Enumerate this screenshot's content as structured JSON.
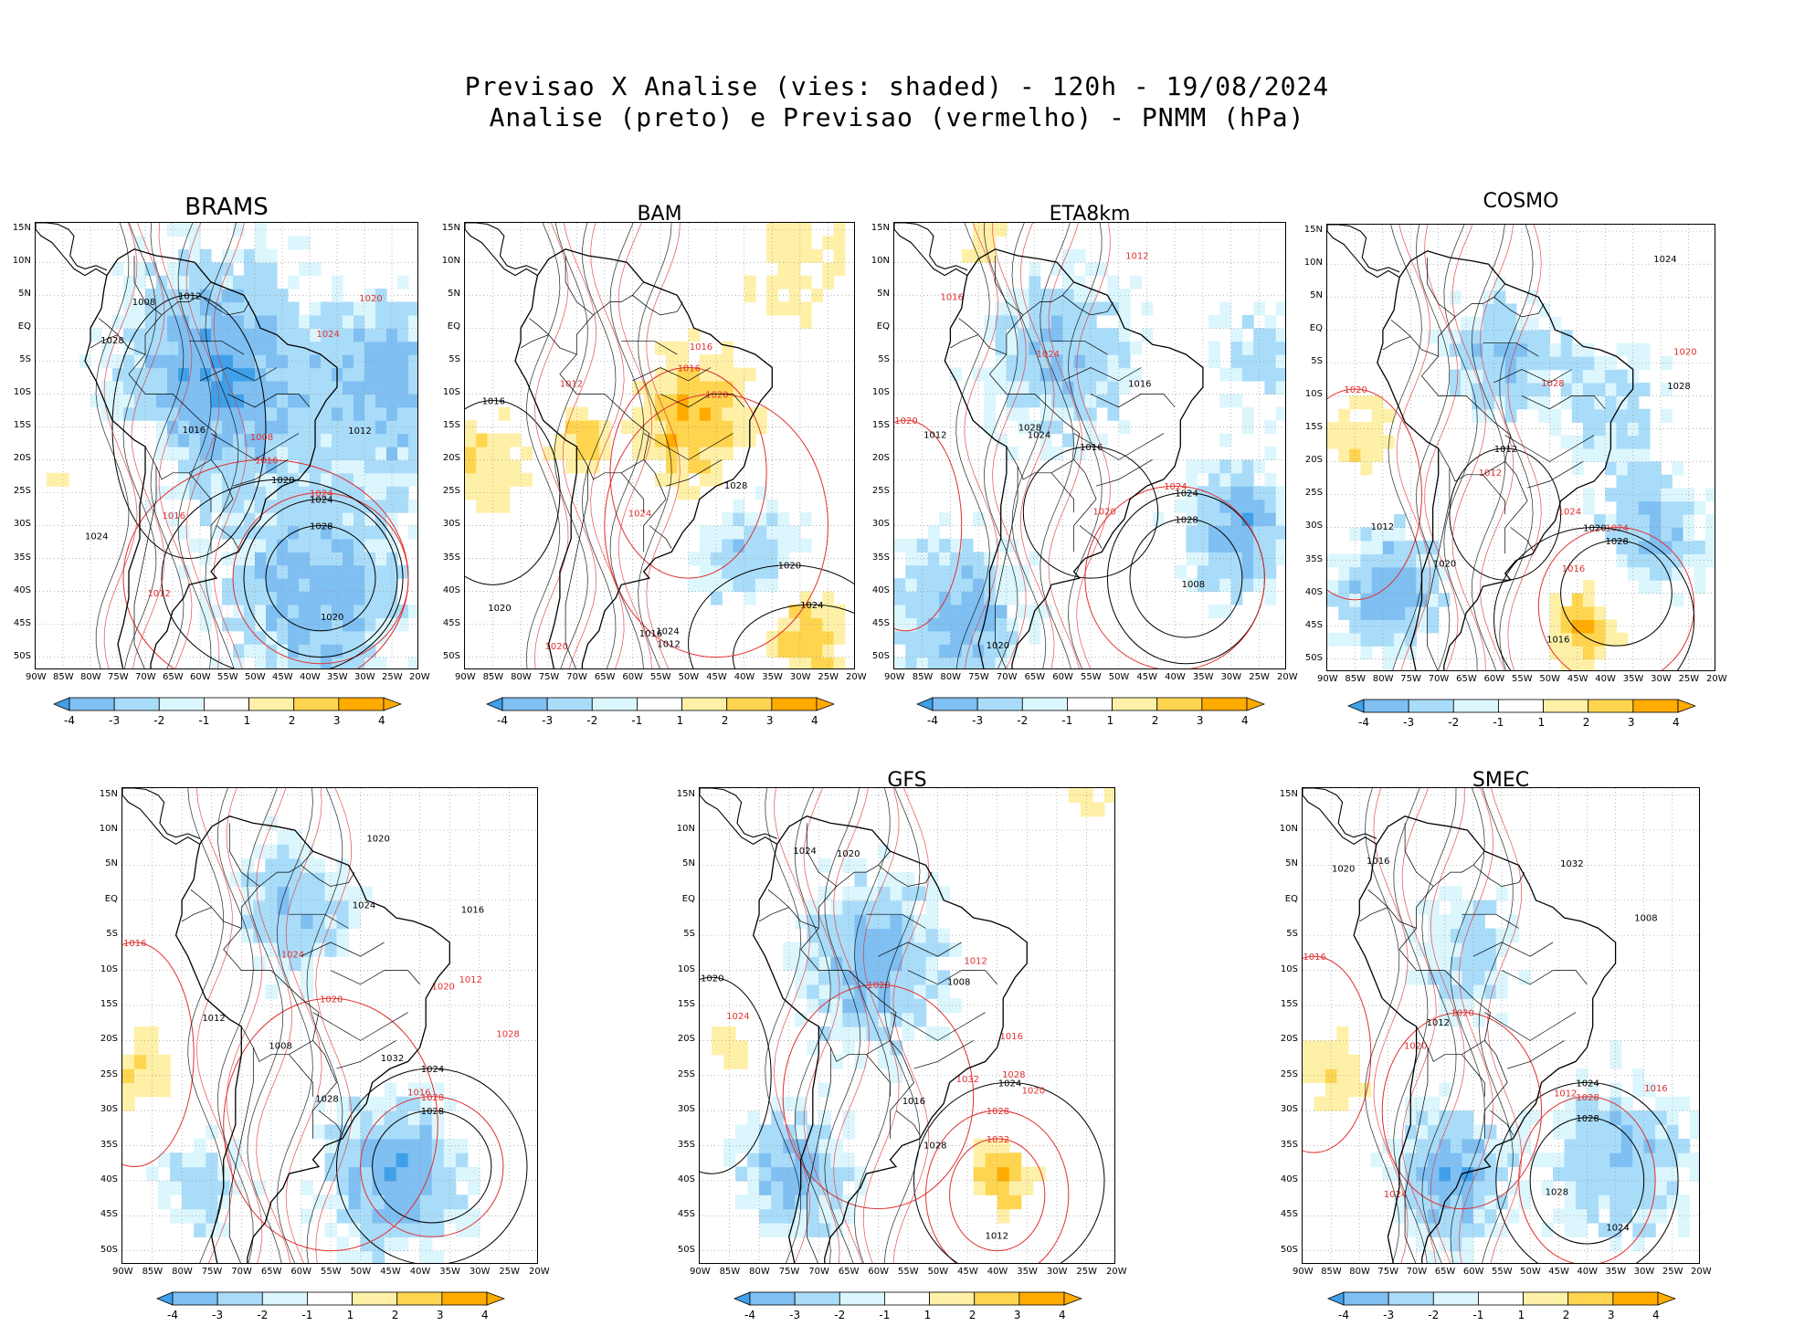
{
  "title_line1": "Previsao X Analise (vies: shaded) - 120h - 19/08/2024",
  "title_line2": "Analise (preto) e Previsao (vermelho) - PNMM (hPa)",
  "colors": {
    "neg4": "#3fa0ea",
    "neg3": "#7fbff2",
    "neg2": "#a9dcf9",
    "neg1": "#dcf6fd",
    "pos1": "#ffffff",
    "pos2": "#fff0a8",
    "pos3": "#ffd54f",
    "pos4": "#ffab00",
    "analysis": "#000000",
    "forecast": "#e03030",
    "grid": "#999999"
  },
  "lat_ticks": [
    "15N",
    "10N",
    "5N",
    "EQ",
    "5S",
    "10S",
    "15S",
    "20S",
    "25S",
    "30S",
    "35S",
    "40S",
    "45S",
    "50S"
  ],
  "lon_ticks": [
    "90W",
    "85W",
    "80W",
    "75W",
    "70W",
    "65W",
    "60W",
    "55W",
    "50W",
    "45W",
    "40W",
    "35W",
    "30W",
    "25W",
    "20W"
  ],
  "colorbar_labels": [
    "-4",
    "-3",
    "-2",
    "-1",
    "1",
    "2",
    "3",
    "4"
  ],
  "panels": [
    {
      "id": "brams",
      "title": "BRAMS",
      "labels_black": [
        "1008",
        "1012",
        "1016",
        "1020",
        "1024",
        "1028"
      ],
      "labels_red": [
        "1008",
        "1012",
        "1016",
        "1020",
        "1024"
      ]
    },
    {
      "id": "bam",
      "title": "BAM",
      "labels_black": [
        "1012",
        "1016",
        "1020",
        "1024",
        "1028"
      ],
      "labels_red": [
        "1012",
        "1016",
        "1020",
        "1024"
      ]
    },
    {
      "id": "eta8km",
      "title": "ETA8km",
      "labels_black": [
        "1008",
        "1012",
        "1016",
        "1020",
        "1024",
        "1028"
      ],
      "labels_red": [
        "1012",
        "1016",
        "1020",
        "1024"
      ]
    },
    {
      "id": "cosmo",
      "title": "COSMO",
      "labels_black": [
        "1012",
        "1016",
        "1020",
        "1024",
        "1028"
      ],
      "labels_red": [
        "1012",
        "1016",
        "1020",
        "1024",
        "1028"
      ]
    },
    {
      "id": "unnamed",
      "title": "",
      "labels_black": [
        "1008",
        "1012",
        "1016",
        "1020",
        "1024",
        "1028",
        "1032"
      ],
      "labels_red": [
        "1012",
        "1016",
        "1020",
        "1024",
        "1028"
      ]
    },
    {
      "id": "gfs",
      "title": "GFS",
      "labels_black": [
        "1008",
        "1012",
        "1016",
        "1020",
        "1024",
        "1028"
      ],
      "labels_red": [
        "1012",
        "1016",
        "1020",
        "1024",
        "1028",
        "1032"
      ]
    },
    {
      "id": "smec",
      "title": "SMEC",
      "labels_black": [
        "1008",
        "1012",
        "1016",
        "1020",
        "1024",
        "1028",
        "1032"
      ],
      "labels_red": [
        "1012",
        "1016",
        "1020",
        "1024"
      ]
    }
  ],
  "chart_data": {
    "type": "heatmap",
    "variable": "PNMM (hPa)",
    "lead_time": "120h",
    "valid_date": "19/08/2024",
    "bias_scale": [
      -4,
      -3,
      -2,
      -1,
      1,
      2,
      3,
      4
    ],
    "lat_range": [
      -52,
      16
    ],
    "lon_range": [
      -90,
      -20
    ]
  }
}
